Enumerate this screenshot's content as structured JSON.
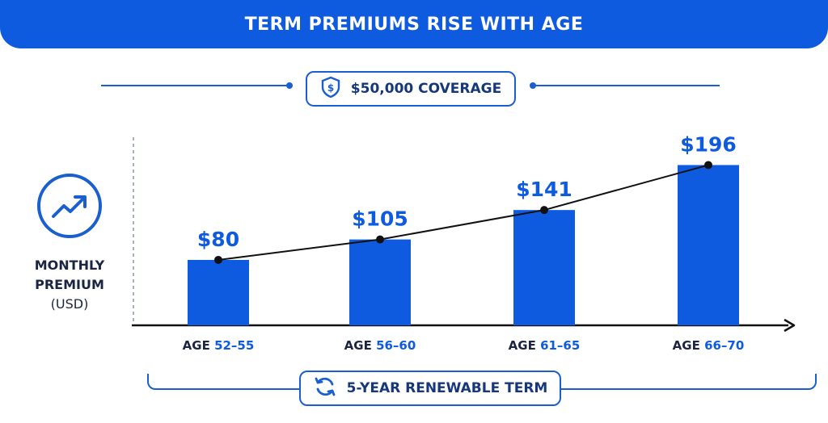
{
  "header": {
    "title": "TERM PREMIUMS RISE WITH AGE"
  },
  "coverage_badge": {
    "label": "$50,000 COVERAGE",
    "icon": "shield-dollar-icon"
  },
  "y_axis_label": {
    "line1": "MONTHLY",
    "line2": "PREMIUM",
    "unit": "(USD)",
    "icon": "trending-up-icon"
  },
  "term_badge": {
    "label": "5-YEAR RENEWABLE TERM",
    "icon": "renew-cycle-icon"
  },
  "colors": {
    "primary": "#0f5be0",
    "dark_text": "#1b2440",
    "line": "#111111"
  },
  "chart_data": {
    "type": "bar",
    "title": "TERM PREMIUMS RISE WITH AGE",
    "categories": [
      "52–55",
      "56–60",
      "61–65",
      "66–70"
    ],
    "category_prefix": "AGE",
    "values": [
      80,
      105,
      141,
      196
    ],
    "data_labels": [
      "$80",
      "$105",
      "$141",
      "$196"
    ],
    "overlay": "line connecting bar tops",
    "ylim": [
      0,
      230
    ],
    "grid": false
  }
}
